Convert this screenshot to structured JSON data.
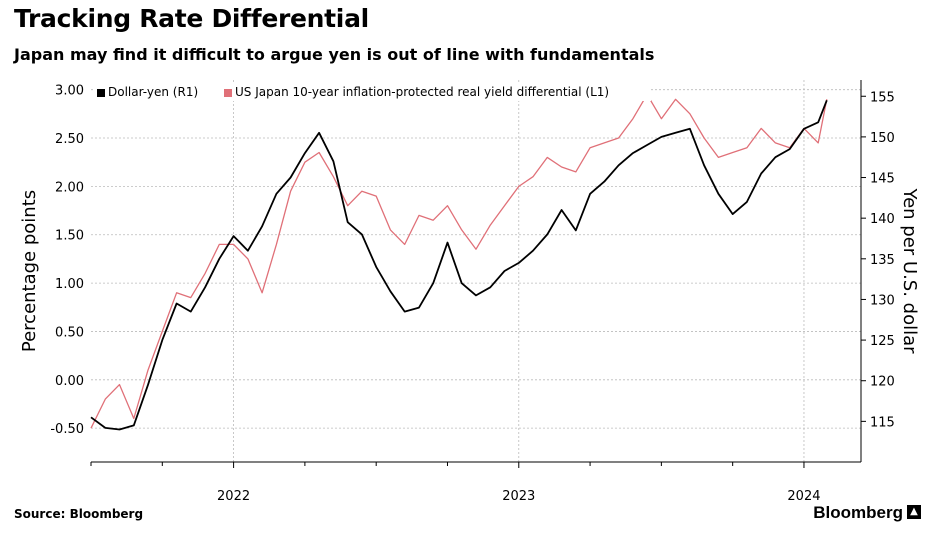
{
  "header": {
    "title": "Tracking Rate Differential",
    "subtitle": "Japan may find it difficult to argue yen is out of line with fundamentals"
  },
  "footer": {
    "source": "Source: Bloomberg",
    "brand": "Bloomberg"
  },
  "colors": {
    "dollar_yen": "#000000",
    "real_yield_diff": "#e07078",
    "grid": "#bbbbbb",
    "plot_bg": "#ffffff"
  },
  "chart_data": {
    "type": "line",
    "title": "Tracking Rate Differential",
    "subtitle": "Japan may find it difficult to argue yen is out of line with fundamentals",
    "x_range": [
      2021.5,
      2024.2
    ],
    "x_ticks": [
      {
        "label": "2022",
        "value": 2022.0
      },
      {
        "label": "2023",
        "value": 2023.0
      },
      {
        "label": "2024",
        "value": 2024.0
      }
    ],
    "left_axis": {
      "label": "Percentage points",
      "range": [
        -0.85,
        3.1
      ],
      "ticks": [
        "3.00",
        "2.50",
        "2.00",
        "1.50",
        "1.00",
        "0.50",
        "0.00",
        "-0.50"
      ],
      "tick_values": [
        3.0,
        2.5,
        2.0,
        1.5,
        1.0,
        0.5,
        0.0,
        -0.5
      ]
    },
    "right_axis": {
      "label": "Yen per U.S. dollar",
      "range": [
        110,
        157
      ],
      "ticks": [
        "155",
        "150",
        "145",
        "140",
        "135",
        "130",
        "125",
        "120",
        "115"
      ],
      "tick_values": [
        155,
        150,
        145,
        140,
        135,
        130,
        125,
        120,
        115
      ]
    },
    "legend": {
      "placement": "top-left",
      "entries": [
        "Dollar-yen (R1)",
        "US Japan 10-year inflation-protected real yield differential (L1)"
      ]
    },
    "series": [
      {
        "name": "Dollar-yen (R1)",
        "axis": "right",
        "color": "#000000",
        "x": [
          2021.5,
          2021.55,
          2021.6,
          2021.65,
          2021.7,
          2021.75,
          2021.8,
          2021.85,
          2021.9,
          2021.95,
          2022.0,
          2022.05,
          2022.1,
          2022.15,
          2022.2,
          2022.25,
          2022.3,
          2022.35,
          2022.4,
          2022.45,
          2022.5,
          2022.55,
          2022.6,
          2022.65,
          2022.7,
          2022.75,
          2022.8,
          2022.85,
          2022.9,
          2022.95,
          2023.0,
          2023.05,
          2023.1,
          2023.15,
          2023.2,
          2023.25,
          2023.3,
          2023.35,
          2023.4,
          2023.45,
          2023.5,
          2023.55,
          2023.6,
          2023.65,
          2023.7,
          2023.75,
          2023.8,
          2023.85,
          2023.9,
          2023.95,
          2024.0,
          2024.05,
          2024.08
        ],
        "values": [
          115.5,
          114.2,
          114.0,
          114.5,
          119.5,
          125.0,
          129.5,
          128.5,
          131.5,
          135.0,
          137.8,
          136.0,
          139.0,
          143.0,
          145.0,
          148.0,
          150.5,
          147.0,
          139.5,
          138.0,
          134.0,
          131.0,
          128.5,
          129.0,
          132.0,
          137.0,
          132.0,
          130.5,
          131.5,
          133.5,
          134.5,
          136.0,
          138.0,
          141.0,
          138.5,
          143.0,
          144.5,
          146.5,
          148.0,
          149.0,
          150.0,
          150.5,
          151.0,
          146.5,
          143.0,
          140.5,
          142.0,
          145.5,
          147.5,
          148.5,
          151.0,
          151.8,
          154.5
        ]
      },
      {
        "name": "US Japan 10-year inflation-protected real yield differential (L1)",
        "axis": "left",
        "color": "#e07078",
        "x": [
          2021.5,
          2021.55,
          2021.6,
          2021.65,
          2021.7,
          2021.75,
          2021.8,
          2021.85,
          2021.9,
          2021.95,
          2022.0,
          2022.05,
          2022.1,
          2022.15,
          2022.2,
          2022.25,
          2022.3,
          2022.35,
          2022.4,
          2022.45,
          2022.5,
          2022.55,
          2022.6,
          2022.65,
          2022.7,
          2022.75,
          2022.8,
          2022.85,
          2022.9,
          2022.95,
          2023.0,
          2023.05,
          2023.1,
          2023.15,
          2023.2,
          2023.25,
          2023.3,
          2023.35,
          2023.4,
          2023.45,
          2023.5,
          2023.55,
          2023.6,
          2023.65,
          2023.7,
          2023.75,
          2023.8,
          2023.85,
          2023.9,
          2023.95,
          2024.0,
          2024.05,
          2024.08
        ],
        "values": [
          -0.5,
          -0.2,
          -0.05,
          -0.4,
          0.1,
          0.5,
          0.9,
          0.85,
          1.1,
          1.4,
          1.4,
          1.25,
          0.9,
          1.4,
          1.95,
          2.25,
          2.35,
          2.1,
          1.8,
          1.95,
          1.9,
          1.55,
          1.4,
          1.7,
          1.65,
          1.8,
          1.55,
          1.35,
          1.6,
          1.8,
          2.0,
          2.1,
          2.3,
          2.2,
          2.15,
          2.4,
          2.45,
          2.5,
          2.7,
          2.95,
          2.7,
          2.9,
          2.75,
          2.5,
          2.3,
          2.35,
          2.4,
          2.6,
          2.45,
          2.4,
          2.6,
          2.45,
          2.9
        ]
      }
    ]
  }
}
